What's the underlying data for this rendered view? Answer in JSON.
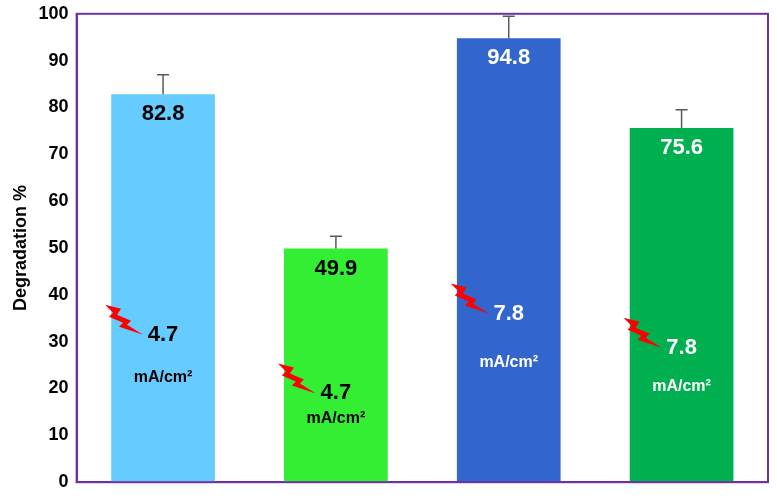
{
  "chart_data": {
    "type": "bar",
    "y_label": "Degradation %",
    "categories": [
      null,
      null,
      null,
      null
    ],
    "values": [
      82.8,
      49.9,
      94.8,
      75.6
    ],
    "errors": [
      4.2,
      2.6,
      4.7,
      3.9
    ],
    "current_density": [
      4.7,
      4.7,
      7.8,
      7.8
    ],
    "current_density_unit": "mA/cm²",
    "colors": [
      "#66ccff",
      "#33ee33",
      "#3366cc",
      "#00b050"
    ],
    "ylim": [
      0,
      100
    ],
    "yticks": [
      0,
      10,
      20,
      30,
      40,
      50,
      60,
      70,
      80,
      90,
      100
    ],
    "grid": false,
    "data_labels": true,
    "tick_labels": "y"
  }
}
